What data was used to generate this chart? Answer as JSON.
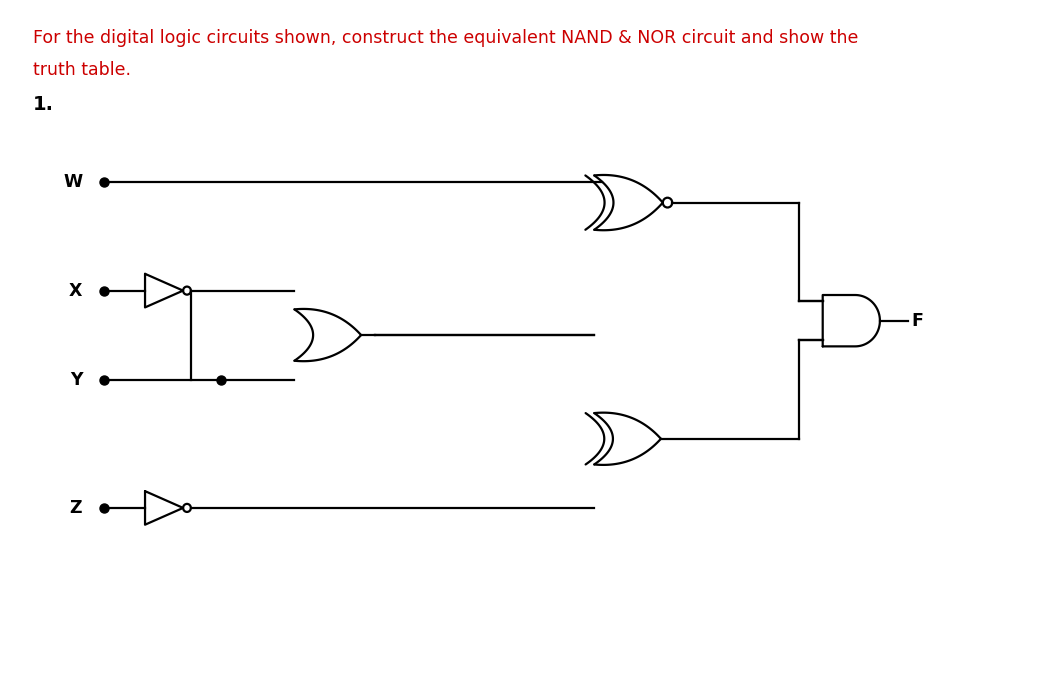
{
  "title_text": "For the digital logic circuits shown, construct the equivalent NAND & NOR circuit and show the",
  "title_text2": "truth table.",
  "number_label": "1.",
  "title_color": "#cc0000",
  "title_fontsize": 12.5,
  "number_fontsize": 14,
  "bg_color": "#ffffff",
  "line_color": "#000000",
  "inputs": [
    "W",
    "X",
    "Y",
    "Z"
  ],
  "output_label": "F",
  "figsize": [
    10.41,
    6.8
  ],
  "dpi": 100
}
